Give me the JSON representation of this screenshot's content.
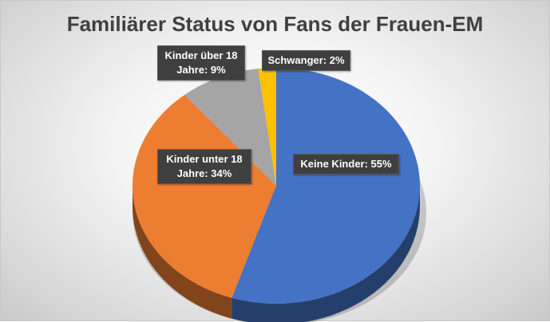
{
  "chart_data": {
    "type": "pie",
    "title": "Familiärer Status von Fans der Frauen-EM",
    "categories": [
      "Keine Kinder",
      "Kinder unter 18 Jahre",
      "Kinder über 18 Jahre",
      "Schwanger"
    ],
    "values": [
      55,
      34,
      9,
      2
    ],
    "labels": [
      "Keine Kinder: 55%",
      "Kinder unter 18 Jahre: 34%",
      "Kinder über 18 Jahre: 9%",
      "Schwanger: 2%"
    ],
    "colors": [
      "#4472c4",
      "#ed7d31",
      "#a5a5a5",
      "#ffc000"
    ],
    "style": "3d",
    "legend": "none"
  }
}
